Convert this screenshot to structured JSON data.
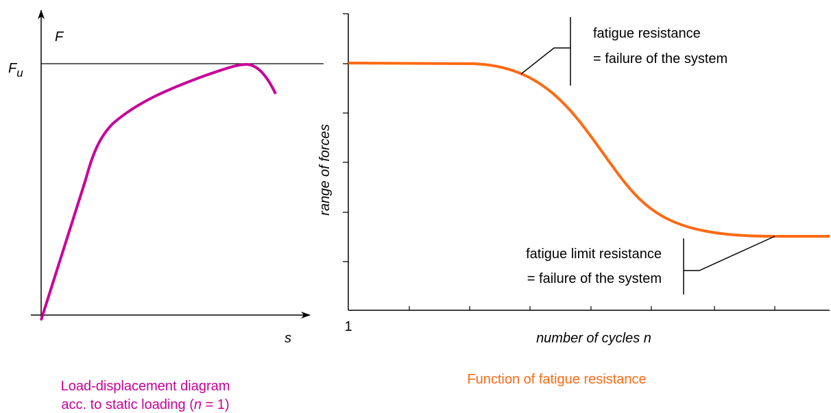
{
  "left_diagram": {
    "y_axis_label": "F",
    "ultimate_label": {
      "main": "F",
      "subscript": "u"
    },
    "x_axis_label": "s",
    "caption": {
      "line1": "Load-displacement diagram",
      "line2_before": "acc. to static loading (",
      "line2_italic": "n",
      "line2_after": " = 1)"
    }
  },
  "right_diagram": {
    "y_axis_label": "range of forces",
    "x_origin_label": "1",
    "x_axis_label": "number of cycles n",
    "annotations": [
      {
        "line1": "fatigue resistance",
        "line2": "= failure of the system"
      },
      {
        "line1": "fatigue limit resistance",
        "line2": "= failure of the system"
      }
    ],
    "caption": "Function of fatigue resistance"
  }
}
